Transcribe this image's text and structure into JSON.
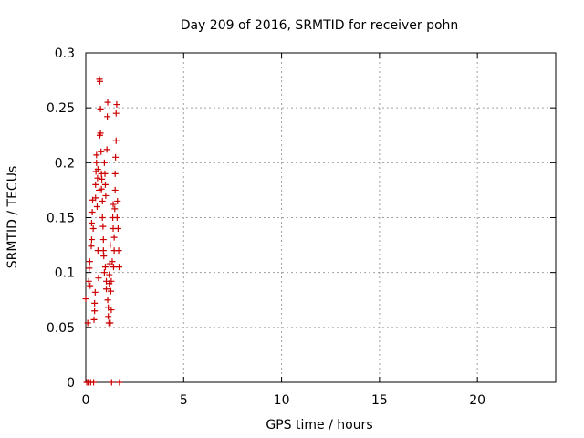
{
  "chart_data": {
    "type": "scatter",
    "title": "Day 209 of 2016, SRMTID for receiver pohn",
    "xlabel": "GPS time / hours",
    "ylabel": "SRMTID / TECUs",
    "xlim": [
      0,
      24
    ],
    "ylim": [
      0,
      0.3
    ],
    "x_ticks": [
      0,
      5,
      10,
      15,
      20
    ],
    "x_tick_labels": [
      "0",
      "5",
      "10",
      "15",
      "20"
    ],
    "y_ticks": [
      0,
      0.05,
      0.1,
      0.15,
      0.2,
      0.25,
      0.3
    ],
    "y_tick_labels": [
      "0",
      "0.05",
      "0.1",
      "0.15",
      "0.2",
      "0.25",
      "0.3"
    ],
    "grid": true,
    "marker": "plus",
    "color": "#cc0000",
    "series": [
      {
        "name": "SRMTID",
        "points": [
          [
            0.0,
            0.076
          ],
          [
            0.05,
            0.0
          ],
          [
            0.1,
            0.054
          ],
          [
            0.12,
            0.0
          ],
          [
            0.15,
            0.092
          ],
          [
            0.18,
            0.104
          ],
          [
            0.2,
            0.11
          ],
          [
            0.22,
            0.088
          ],
          [
            0.25,
            0.0
          ],
          [
            0.28,
            0.124
          ],
          [
            0.3,
            0.13
          ],
          [
            0.3,
            0.145
          ],
          [
            0.33,
            0.155
          ],
          [
            0.35,
            0.166
          ],
          [
            0.38,
            0.14
          ],
          [
            0.4,
            0.0
          ],
          [
            0.42,
            0.057
          ],
          [
            0.45,
            0.065
          ],
          [
            0.45,
            0.072
          ],
          [
            0.48,
            0.082
          ],
          [
            0.5,
            0.168
          ],
          [
            0.5,
            0.18
          ],
          [
            0.52,
            0.192
          ],
          [
            0.55,
            0.2
          ],
          [
            0.55,
            0.207
          ],
          [
            0.58,
            0.16
          ],
          [
            0.6,
            0.186
          ],
          [
            0.62,
            0.194
          ],
          [
            0.62,
            0.12
          ],
          [
            0.65,
            0.095
          ],
          [
            0.68,
            0.175
          ],
          [
            0.7,
            0.276
          ],
          [
            0.72,
            0.274
          ],
          [
            0.72,
            0.225
          ],
          [
            0.75,
            0.249
          ],
          [
            0.75,
            0.227
          ],
          [
            0.78,
            0.21
          ],
          [
            0.8,
            0.19
          ],
          [
            0.8,
            0.176
          ],
          [
            0.82,
            0.185
          ],
          [
            0.85,
            0.165
          ],
          [
            0.85,
            0.15
          ],
          [
            0.88,
            0.142
          ],
          [
            0.9,
            0.13
          ],
          [
            0.9,
            0.12
          ],
          [
            0.92,
            0.115
          ],
          [
            0.95,
            0.1
          ],
          [
            0.95,
            0.2
          ],
          [
            0.98,
            0.19
          ],
          [
            1.0,
            0.105
          ],
          [
            1.0,
            0.18
          ],
          [
            1.02,
            0.17
          ],
          [
            1.05,
            0.092
          ],
          [
            1.05,
            0.085
          ],
          [
            1.08,
            0.212
          ],
          [
            1.1,
            0.242
          ],
          [
            1.12,
            0.255
          ],
          [
            1.12,
            0.075
          ],
          [
            1.15,
            0.068
          ],
          [
            1.15,
            0.06
          ],
          [
            1.18,
            0.054
          ],
          [
            1.2,
            0.09
          ],
          [
            1.2,
            0.098
          ],
          [
            1.22,
            0.108
          ],
          [
            1.25,
            0.125
          ],
          [
            1.25,
            0.054
          ],
          [
            1.28,
            0.083
          ],
          [
            1.3,
            0.092
          ],
          [
            1.3,
            0.066
          ],
          [
            1.32,
            0.0
          ],
          [
            1.35,
            0.11
          ],
          [
            1.38,
            0.15
          ],
          [
            1.4,
            0.162
          ],
          [
            1.4,
            0.14
          ],
          [
            1.42,
            0.105
          ],
          [
            1.45,
            0.12
          ],
          [
            1.45,
            0.132
          ],
          [
            1.48,
            0.158
          ],
          [
            1.5,
            0.175
          ],
          [
            1.5,
            0.19
          ],
          [
            1.52,
            0.205
          ],
          [
            1.55,
            0.22
          ],
          [
            1.55,
            0.245
          ],
          [
            1.58,
            0.253
          ],
          [
            1.6,
            0.15
          ],
          [
            1.62,
            0.165
          ],
          [
            1.65,
            0.14
          ],
          [
            1.68,
            0.12
          ],
          [
            1.7,
            0.105
          ],
          [
            1.72,
            0.0
          ]
        ]
      }
    ]
  }
}
